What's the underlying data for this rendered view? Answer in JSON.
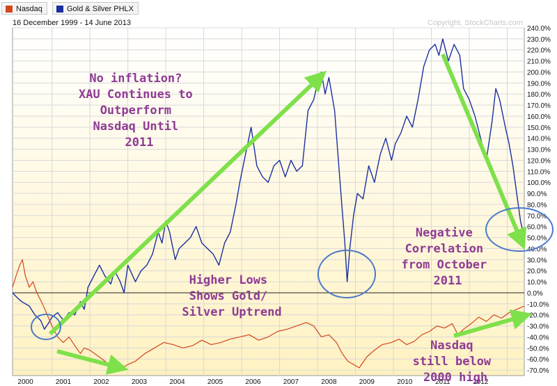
{
  "legend": {
    "items": [
      {
        "label": "Nasdaq",
        "color": "#d2451e"
      },
      {
        "label": "Gold & Silver PHLX",
        "color": "#1a2fa0"
      }
    ]
  },
  "date_range": "16 December 1999 - 14 June 2013",
  "copyright": "Copyright, StockCharts.com",
  "annotations": {
    "no_inflation": [
      "No inflation?",
      "XAU Continues to",
      "Outperform",
      "Nasdaq Until",
      "2011"
    ],
    "higher_lows": [
      "Higher Lows",
      "Shows Gold/",
      "Silver Uptrend"
    ],
    "negative_correlation": [
      "Negative",
      "Correlation",
      "from October",
      "2011"
    ],
    "nasdaq_below": [
      "Nasdaq",
      "still below",
      "2000 high"
    ]
  },
  "colors": {
    "gold_silver": "#1a2fa0",
    "nasdaq": "#d2451e",
    "arrow": "#7ee04a",
    "circle": "#4a78c8",
    "annotation_text": "#8e3b94"
  },
  "chart_data": {
    "type": "line",
    "x_unit": "year",
    "xlim": [
      1999.96,
      2013.45
    ],
    "ylim": [
      -75,
      240
    ],
    "y_ticks": [
      240,
      230,
      220,
      210,
      200,
      190,
      180,
      170,
      160,
      150,
      140,
      130,
      120,
      110,
      100,
      90,
      80,
      70,
      60,
      50,
      40,
      30,
      20,
      10,
      0,
      -10,
      -20,
      -30,
      -40,
      -50,
      -60,
      -70
    ],
    "y_tick_labels": [
      "240.0%",
      "230.0%",
      "220.0%",
      "210.0%",
      "200.0%",
      "190.0%",
      "180.0%",
      "170.0%",
      "160.0%",
      "150.0%",
      "140.0%",
      "130.0%",
      "120.0%",
      "110.0%",
      "100.0%",
      "90.0%",
      "80.0%",
      "70.0%",
      "60.0%",
      "50.0%",
      "40.0%",
      "30.0%",
      "20.0%",
      "10.0%",
      "0.0%",
      "-10.0%",
      "-20.0%",
      "-30.0%",
      "-40.0%",
      "-50.0%",
      "-60.0%",
      "-70.0%"
    ],
    "x_tick_labels": [
      "2000",
      "2001",
      "2002",
      "2003",
      "2004",
      "2005",
      "2006",
      "2007",
      "2008",
      "2009",
      "2010",
      "2011",
      "2012"
    ],
    "grid": true,
    "legend_position": "top-left",
    "series": [
      {
        "name": "Gold & Silver PHLX",
        "points": [
          [
            1999.96,
            0
          ],
          [
            2000.1,
            -5
          ],
          [
            2000.2,
            -8
          ],
          [
            2000.4,
            -12
          ],
          [
            2000.55,
            -20
          ],
          [
            2000.7,
            -25
          ],
          [
            2000.8,
            -33
          ],
          [
            2000.9,
            -28
          ],
          [
            2001.0,
            -22
          ],
          [
            2001.15,
            -18
          ],
          [
            2001.3,
            -25
          ],
          [
            2001.45,
            -18
          ],
          [
            2001.6,
            -20
          ],
          [
            2001.75,
            -8
          ],
          [
            2001.85,
            -15
          ],
          [
            2001.95,
            5
          ],
          [
            2002.1,
            15
          ],
          [
            2002.25,
            25
          ],
          [
            2002.4,
            15
          ],
          [
            2002.55,
            8
          ],
          [
            2002.65,
            20
          ],
          [
            2002.8,
            10
          ],
          [
            2002.9,
            0
          ],
          [
            2003.0,
            25
          ],
          [
            2003.2,
            10
          ],
          [
            2003.35,
            20
          ],
          [
            2003.5,
            25
          ],
          [
            2003.65,
            35
          ],
          [
            2003.8,
            55
          ],
          [
            2003.9,
            45
          ],
          [
            2004.0,
            65
          ],
          [
            2004.1,
            55
          ],
          [
            2004.25,
            30
          ],
          [
            2004.35,
            40
          ],
          [
            2004.5,
            45
          ],
          [
            2004.65,
            50
          ],
          [
            2004.8,
            60
          ],
          [
            2004.95,
            45
          ],
          [
            2005.1,
            40
          ],
          [
            2005.25,
            35
          ],
          [
            2005.4,
            25
          ],
          [
            2005.55,
            45
          ],
          [
            2005.7,
            55
          ],
          [
            2005.85,
            80
          ],
          [
            2005.95,
            100
          ],
          [
            2006.1,
            125
          ],
          [
            2006.25,
            150
          ],
          [
            2006.4,
            115
          ],
          [
            2006.55,
            105
          ],
          [
            2006.7,
            100
          ],
          [
            2006.85,
            115
          ],
          [
            2007.0,
            120
          ],
          [
            2007.15,
            105
          ],
          [
            2007.3,
            120
          ],
          [
            2007.45,
            110
          ],
          [
            2007.6,
            115
          ],
          [
            2007.75,
            165
          ],
          [
            2007.9,
            175
          ],
          [
            2008.0,
            190
          ],
          [
            2008.1,
            200
          ],
          [
            2008.2,
            180
          ],
          [
            2008.3,
            195
          ],
          [
            2008.45,
            165
          ],
          [
            2008.55,
            120
          ],
          [
            2008.65,
            75
          ],
          [
            2008.72,
            45
          ],
          [
            2008.78,
            10
          ],
          [
            2008.85,
            40
          ],
          [
            2008.95,
            70
          ],
          [
            2009.05,
            90
          ],
          [
            2009.2,
            85
          ],
          [
            2009.35,
            115
          ],
          [
            2009.5,
            100
          ],
          [
            2009.65,
            125
          ],
          [
            2009.8,
            140
          ],
          [
            2009.95,
            120
          ],
          [
            2010.05,
            135
          ],
          [
            2010.2,
            145
          ],
          [
            2010.35,
            160
          ],
          [
            2010.5,
            150
          ],
          [
            2010.65,
            175
          ],
          [
            2010.8,
            205
          ],
          [
            2010.95,
            220
          ],
          [
            2011.1,
            225
          ],
          [
            2011.2,
            215
          ],
          [
            2011.3,
            230
          ],
          [
            2011.45,
            210
          ],
          [
            2011.6,
            225
          ],
          [
            2011.75,
            215
          ],
          [
            2011.85,
            185
          ],
          [
            2012.0,
            175
          ],
          [
            2012.15,
            160
          ],
          [
            2012.3,
            140
          ],
          [
            2012.45,
            120
          ],
          [
            2012.6,
            155
          ],
          [
            2012.7,
            185
          ],
          [
            2012.8,
            175
          ],
          [
            2012.95,
            150
          ],
          [
            2013.05,
            135
          ],
          [
            2013.15,
            115
          ],
          [
            2013.25,
            90
          ],
          [
            2013.35,
            65
          ],
          [
            2013.45,
            50
          ]
        ]
      },
      {
        "name": "Nasdaq",
        "points": [
          [
            1999.96,
            5
          ],
          [
            2000.05,
            15
          ],
          [
            2000.15,
            25
          ],
          [
            2000.22,
            30
          ],
          [
            2000.3,
            15
          ],
          [
            2000.4,
            5
          ],
          [
            2000.5,
            10
          ],
          [
            2000.6,
            0
          ],
          [
            2000.75,
            -10
          ],
          [
            2000.9,
            -22
          ],
          [
            2001.0,
            -30
          ],
          [
            2001.15,
            -40
          ],
          [
            2001.3,
            -45
          ],
          [
            2001.45,
            -40
          ],
          [
            2001.6,
            -48
          ],
          [
            2001.75,
            -55
          ],
          [
            2001.85,
            -50
          ],
          [
            2002.0,
            -52
          ],
          [
            2002.2,
            -57
          ],
          [
            2002.4,
            -62
          ],
          [
            2002.55,
            -67
          ],
          [
            2002.7,
            -63
          ],
          [
            2002.85,
            -68
          ],
          [
            2003.0,
            -65
          ],
          [
            2003.2,
            -62
          ],
          [
            2003.45,
            -55
          ],
          [
            2003.7,
            -50
          ],
          [
            2003.95,
            -45
          ],
          [
            2004.2,
            -47
          ],
          [
            2004.45,
            -50
          ],
          [
            2004.7,
            -48
          ],
          [
            2004.95,
            -43
          ],
          [
            2005.2,
            -47
          ],
          [
            2005.45,
            -45
          ],
          [
            2005.7,
            -42
          ],
          [
            2005.95,
            -40
          ],
          [
            2006.2,
            -38
          ],
          [
            2006.45,
            -43
          ],
          [
            2006.7,
            -40
          ],
          [
            2006.95,
            -35
          ],
          [
            2007.2,
            -33
          ],
          [
            2007.45,
            -30
          ],
          [
            2007.7,
            -27
          ],
          [
            2007.9,
            -30
          ],
          [
            2008.1,
            -40
          ],
          [
            2008.3,
            -38
          ],
          [
            2008.5,
            -45
          ],
          [
            2008.65,
            -55
          ],
          [
            2008.8,
            -62
          ],
          [
            2008.95,
            -65
          ],
          [
            2009.1,
            -68
          ],
          [
            2009.3,
            -58
          ],
          [
            2009.5,
            -52
          ],
          [
            2009.7,
            -47
          ],
          [
            2009.95,
            -45
          ],
          [
            2010.15,
            -42
          ],
          [
            2010.35,
            -47
          ],
          [
            2010.55,
            -44
          ],
          [
            2010.75,
            -38
          ],
          [
            2010.95,
            -35
          ],
          [
            2011.15,
            -30
          ],
          [
            2011.35,
            -32
          ],
          [
            2011.55,
            -28
          ],
          [
            2011.7,
            -38
          ],
          [
            2011.85,
            -33
          ],
          [
            2012.05,
            -28
          ],
          [
            2012.25,
            -22
          ],
          [
            2012.45,
            -26
          ],
          [
            2012.65,
            -20
          ],
          [
            2012.85,
            -23
          ],
          [
            2013.05,
            -18
          ],
          [
            2013.25,
            -15
          ],
          [
            2013.45,
            -12
          ]
        ]
      }
    ]
  }
}
